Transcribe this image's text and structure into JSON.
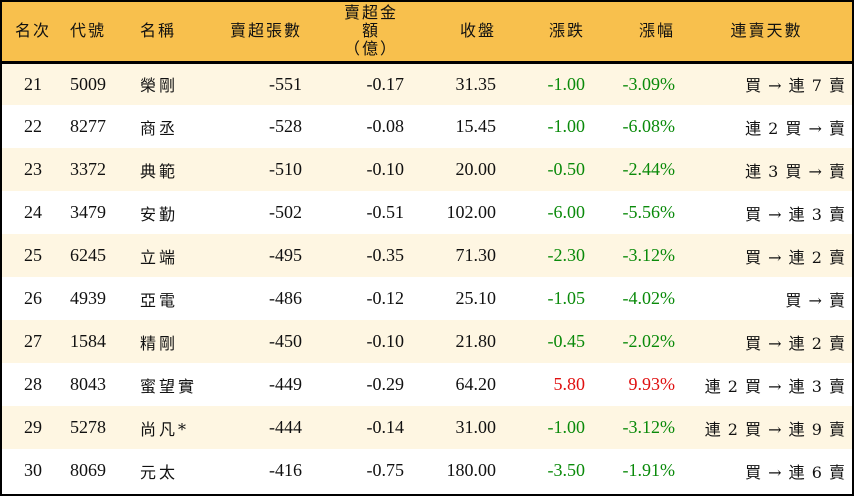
{
  "columns": [
    "名次",
    "代號",
    "名稱",
    "賣超張數",
    "賣超金額\n（億）",
    "收盤",
    "漲跌",
    "漲幅",
    "連賣天數"
  ],
  "colors": {
    "header_bg": "#F8C04D",
    "row_alt_bg": "#FEF6E2",
    "down": "#0a8a0a",
    "up": "#e01010"
  },
  "rows": [
    {
      "rank": "21",
      "code": "5009",
      "name": "榮剛",
      "shares": "-551",
      "amount": "-0.17",
      "close": "31.35",
      "change": "-1.00",
      "pct": "-3.09%",
      "streak": "買 → 連 7 賣",
      "dir": "down"
    },
    {
      "rank": "22",
      "code": "8277",
      "name": "商丞",
      "shares": "-528",
      "amount": "-0.08",
      "close": "15.45",
      "change": "-1.00",
      "pct": "-6.08%",
      "streak": "連 2 買 → 賣",
      "dir": "down"
    },
    {
      "rank": "23",
      "code": "3372",
      "name": "典範",
      "shares": "-510",
      "amount": "-0.10",
      "close": "20.00",
      "change": "-0.50",
      "pct": "-2.44%",
      "streak": "連 3 買 → 賣",
      "dir": "down"
    },
    {
      "rank": "24",
      "code": "3479",
      "name": "安勤",
      "shares": "-502",
      "amount": "-0.51",
      "close": "102.00",
      "change": "-6.00",
      "pct": "-5.56%",
      "streak": "買 → 連 3 賣",
      "dir": "down"
    },
    {
      "rank": "25",
      "code": "6245",
      "name": "立端",
      "shares": "-495",
      "amount": "-0.35",
      "close": "71.30",
      "change": "-2.30",
      "pct": "-3.12%",
      "streak": "買 → 連 2 賣",
      "dir": "down"
    },
    {
      "rank": "26",
      "code": "4939",
      "name": "亞電",
      "shares": "-486",
      "amount": "-0.12",
      "close": "25.10",
      "change": "-1.05",
      "pct": "-4.02%",
      "streak": "買 → 賣",
      "dir": "down"
    },
    {
      "rank": "27",
      "code": "1584",
      "name": "精剛",
      "shares": "-450",
      "amount": "-0.10",
      "close": "21.80",
      "change": "-0.45",
      "pct": "-2.02%",
      "streak": "買 → 連 2 賣",
      "dir": "down"
    },
    {
      "rank": "28",
      "code": "8043",
      "name": "蜜望實",
      "shares": "-449",
      "amount": "-0.29",
      "close": "64.20",
      "change": "5.80",
      "pct": "9.93%",
      "streak": "連 2 買 → 連 3 賣",
      "dir": "up"
    },
    {
      "rank": "29",
      "code": "5278",
      "name": "尚凡*",
      "shares": "-444",
      "amount": "-0.14",
      "close": "31.00",
      "change": "-1.00",
      "pct": "-3.12%",
      "streak": "連 2 買 → 連 9 賣",
      "dir": "down"
    },
    {
      "rank": "30",
      "code": "8069",
      "name": "元太",
      "shares": "-416",
      "amount": "-0.75",
      "close": "180.00",
      "change": "-3.50",
      "pct": "-1.91%",
      "streak": "買 → 連 6 賣",
      "dir": "down"
    }
  ]
}
